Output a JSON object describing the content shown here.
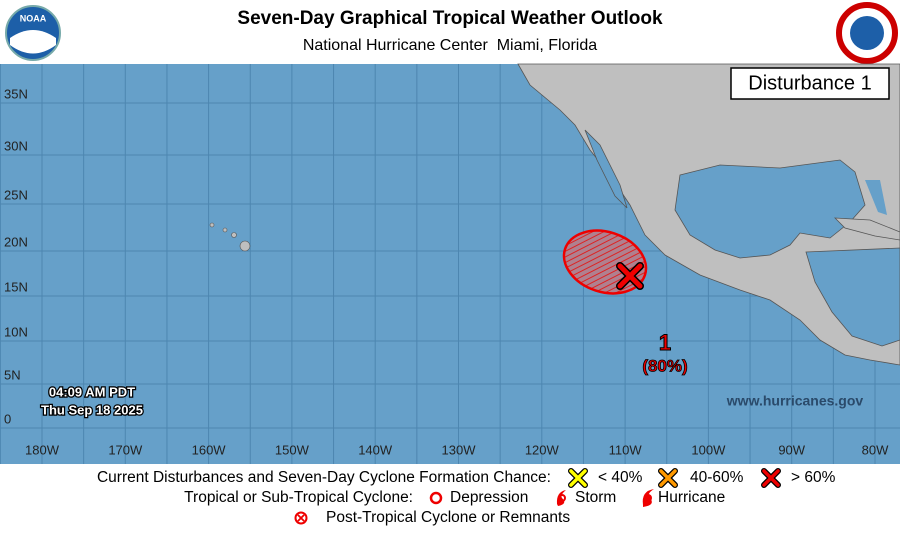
{
  "header": {
    "title": "Seven-Day Graphical Tropical Weather Outlook",
    "subtitle": "National Hurricane Center  Miami, Florida",
    "logo_left": "NOAA"
  },
  "map": {
    "panel_label": "Disturbance 1",
    "lat_labels": [
      "35N",
      "30N",
      "25N",
      "20N",
      "15N",
      "10N",
      "5N",
      "0"
    ],
    "lon_labels": [
      "180W",
      "170W",
      "160W",
      "150W",
      "140W",
      "130W",
      "120W",
      "110W",
      "100W",
      "90W",
      "80W"
    ],
    "disturbances": [
      {
        "label": "1",
        "chance": "(80%)"
      }
    ],
    "timestamp": [
      "04:09 AM PDT",
      "Thu Sep 18 2025"
    ],
    "url": "www.hurricanes.gov"
  },
  "legend": {
    "row1": {
      "label": "Current Disturbances and Seven-Day Cyclone Formation Chance:",
      "items": [
        "< 40%",
        "40-60%",
        "> 60%"
      ]
    },
    "row2": {
      "label": "Tropical or Sub-Tropical Cyclone:",
      "items": [
        "Depression",
        "Storm",
        "Hurricane"
      ]
    },
    "row3": {
      "items": [
        "Post-Tropical Cyclone or Remnants"
      ]
    }
  }
}
